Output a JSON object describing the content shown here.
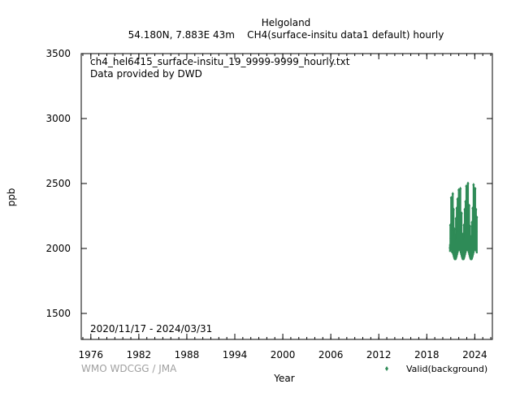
{
  "chart_data": {
    "type": "scatter",
    "title": "Helgoland",
    "subtitle": "54.180N, 7.883E 43m    CH4(surface-insitu data1 default) hourly",
    "xlabel": "Year",
    "ylabel": "ppb",
    "xlim": [
      1974.8,
      2026.2
    ],
    "ylim": [
      1300,
      3500
    ],
    "xticks": [
      1976,
      1982,
      1988,
      1994,
      2000,
      2006,
      2012,
      2018,
      2024
    ],
    "yticks": [
      1500,
      2000,
      2500,
      3000,
      3500
    ],
    "annotations": {
      "file": "ch4_hel6415_surface-insitu_19_9999-9999_hourly.txt",
      "provider": "Data provided by DWD",
      "period": "2020/11/17 - 2024/03/31"
    },
    "credit": "WMO WDCGG / JMA",
    "legend_position": "bottom-right",
    "series": [
      {
        "name": "Valid(background)",
        "color": "#2e8b57",
        "x_range": [
          2020.88,
          2024.25
        ],
        "points": [
          [
            2020.9,
            2005
          ],
          [
            2020.95,
            2180
          ],
          [
            2021.0,
            2080
          ],
          [
            2021.05,
            2390
          ],
          [
            2021.1,
            2130
          ],
          [
            2021.15,
            1975
          ],
          [
            2021.2,
            2250
          ],
          [
            2021.25,
            2420
          ],
          [
            2021.3,
            2060
          ],
          [
            2021.35,
            2300
          ],
          [
            2021.4,
            2000
          ],
          [
            2021.45,
            2150
          ],
          [
            2021.5,
            1960
          ],
          [
            2021.55,
            2100
          ],
          [
            2021.6,
            1990
          ],
          [
            2021.65,
            2230
          ],
          [
            2021.7,
            2040
          ],
          [
            2021.75,
            2310
          ],
          [
            2021.8,
            2120
          ],
          [
            2021.85,
            2380
          ],
          [
            2021.9,
            2060
          ],
          [
            2021.95,
            2200
          ],
          [
            2022.0,
            2450
          ],
          [
            2022.05,
            2140
          ],
          [
            2022.1,
            2340
          ],
          [
            2022.15,
            2030
          ],
          [
            2022.2,
            2460
          ],
          [
            2022.25,
            2190
          ],
          [
            2022.3,
            2090
          ],
          [
            2022.35,
            2270
          ],
          [
            2022.4,
            1990
          ],
          [
            2022.45,
            2110
          ],
          [
            2022.5,
            1955
          ],
          [
            2022.55,
            2060
          ],
          [
            2022.6,
            2010
          ],
          [
            2022.65,
            2180
          ],
          [
            2022.7,
            2080
          ],
          [
            2022.75,
            2300
          ],
          [
            2022.8,
            2150
          ],
          [
            2022.85,
            2360
          ],
          [
            2022.9,
            2070
          ],
          [
            2022.95,
            2480
          ],
          [
            2023.0,
            2220
          ],
          [
            2023.05,
            2400
          ],
          [
            2023.1,
            2050
          ],
          [
            2023.15,
            2500
          ],
          [
            2023.2,
            2260
          ],
          [
            2023.25,
            2120
          ],
          [
            2023.3,
            2330
          ],
          [
            2023.35,
            2010
          ],
          [
            2023.4,
            2170
          ],
          [
            2023.45,
            1970
          ],
          [
            2023.5,
            2090
          ],
          [
            2023.55,
            1930
          ],
          [
            2023.6,
            2040
          ],
          [
            2023.65,
            2200
          ],
          [
            2023.7,
            2100
          ],
          [
            2023.75,
            2310
          ],
          [
            2023.8,
            2150
          ],
          [
            2023.85,
            2490
          ],
          [
            2023.9,
            2090
          ],
          [
            2023.95,
            2380
          ],
          [
            2024.0,
            2210
          ],
          [
            2024.05,
            2460
          ],
          [
            2024.1,
            2060
          ],
          [
            2024.15,
            2300
          ],
          [
            2024.2,
            2130
          ],
          [
            2024.25,
            2240
          ]
        ]
      }
    ]
  }
}
